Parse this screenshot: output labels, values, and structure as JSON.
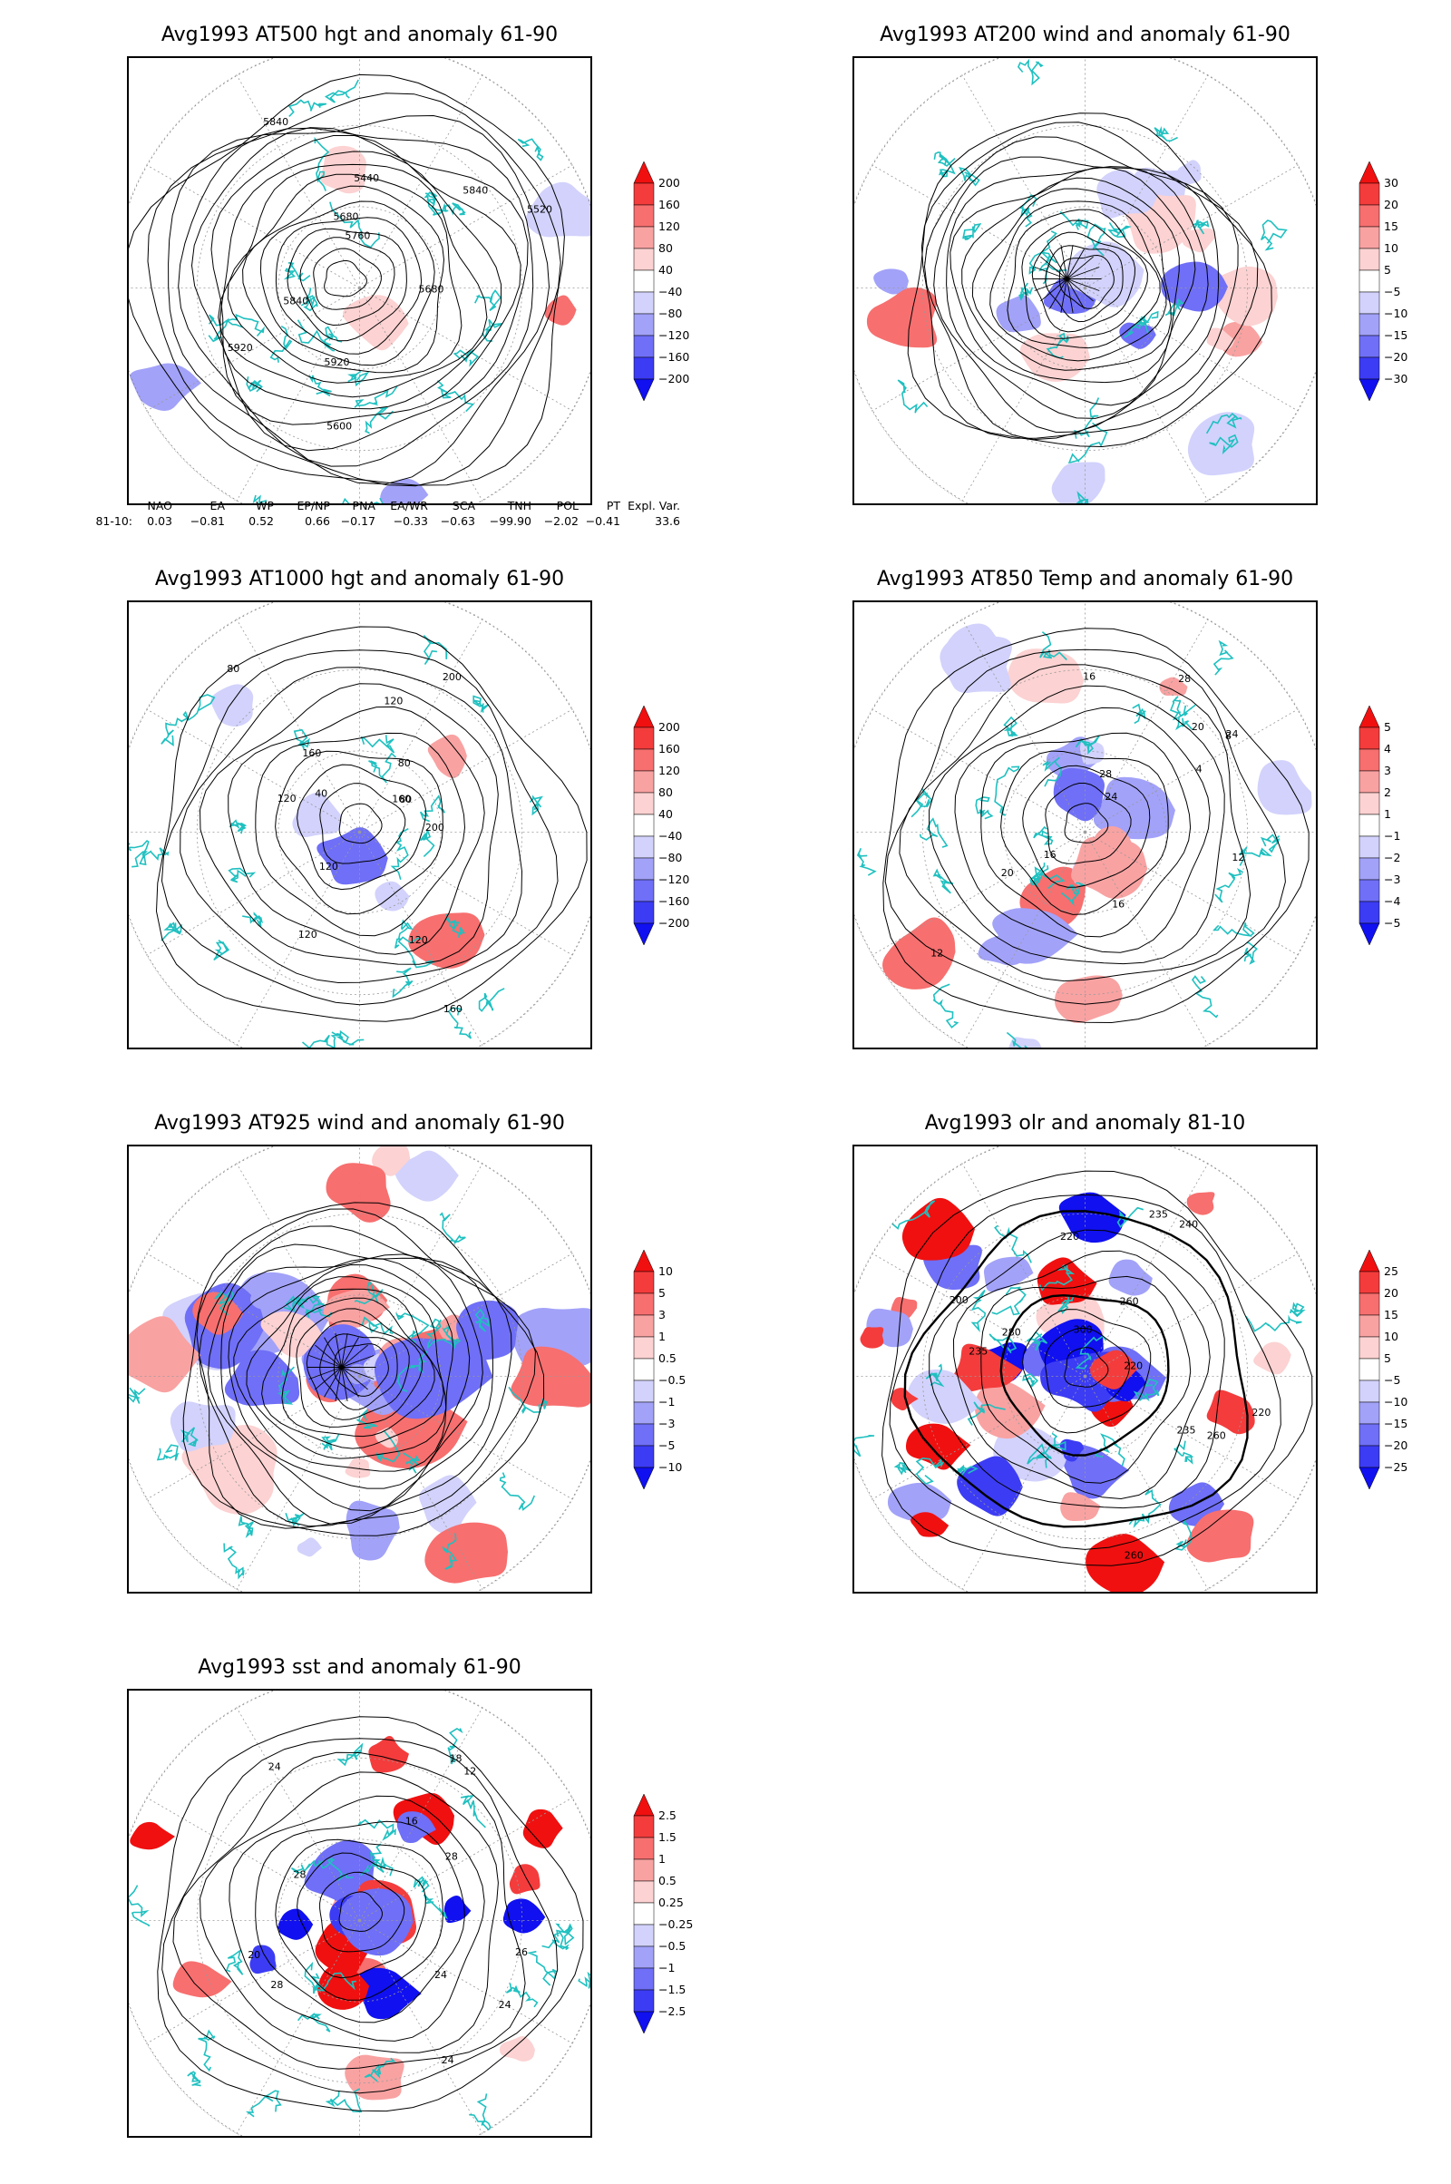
{
  "panels": [
    {
      "title": "Avg1993 AT500 hgt and anomaly 61-90",
      "legend": [
        "200",
        "160",
        "120",
        "80",
        "40",
        "−40",
        "−80",
        "−120",
        "−160",
        "−200"
      ],
      "contour_labels": [
        "5840",
        "5760",
        "5680",
        "5600",
        "5520",
        "5440",
        "5920",
        "5680",
        "5840",
        "5840",
        "5920"
      ]
    },
    {
      "title": "Avg1993 AT200 wind and anomaly 61-90",
      "legend": [
        "30",
        "20",
        "15",
        "10",
        "5",
        "−5",
        "−10",
        "−15",
        "−20",
        "−30"
      ],
      "contour_labels": []
    },
    {
      "title": "Avg1993 AT1000 hgt and anomaly 61-90",
      "legend": [
        "200",
        "160",
        "120",
        "80",
        "40",
        "−40",
        "−80",
        "−120",
        "−160",
        "−200"
      ],
      "contour_labels": [
        "120",
        "160",
        "80",
        "200",
        "160",
        "120",
        "80",
        "40",
        "120",
        "200",
        "160",
        "120",
        "80",
        "120"
      ]
    },
    {
      "title": "Avg1993 AT850 Temp and anomaly 61-90",
      "legend": [
        "5",
        "4",
        "3",
        "2",
        "1",
        "−1",
        "−2",
        "−3",
        "−4",
        "−5"
      ],
      "contour_labels": [
        "16",
        "12",
        "8",
        "24",
        "20",
        "28",
        "16",
        "4",
        "12",
        "20",
        "28",
        "24",
        "16"
      ]
    },
    {
      "title": "Avg1993 AT925 wind and anomaly 61-90",
      "legend": [
        "10",
        "5",
        "3",
        "1",
        "0.5",
        "−0.5",
        "−1",
        "−3",
        "−5",
        "−10"
      ],
      "contour_labels": []
    },
    {
      "title": "Avg1993 olr and anomaly 81-10",
      "legend": [
        "25",
        "20",
        "15",
        "10",
        "5",
        "−5",
        "−10",
        "−15",
        "−20",
        "−25"
      ],
      "contour_labels": [
        "260",
        "235",
        "220",
        "200",
        "240",
        "260",
        "220",
        "235",
        "300",
        "280",
        "260",
        "235",
        "220"
      ]
    },
    {
      "title": "Avg1993 sst and anomaly 61-90",
      "legend": [
        "2.5",
        "1.5",
        "1",
        "0.5",
        "0.25",
        "−0.25",
        "−0.5",
        "−1",
        "−1.5",
        "−2.5"
      ],
      "contour_labels": [
        "28",
        "26",
        "24",
        "20",
        "16",
        "12",
        "24",
        "18",
        "28",
        "24",
        "28",
        "24"
      ]
    }
  ],
  "teleconnection": {
    "headers": [
      "NAO",
      "EA",
      "WP",
      "EP/NP",
      "PNA",
      "EA/WR",
      "SCA",
      "TNH",
      "POL",
      "PT",
      "Expl. Var."
    ],
    "row_label": "81-10:",
    "values": [
      "0.03",
      "−0.81",
      "0.52",
      "0.66",
      "−0.17",
      "−0.33",
      "−0.63",
      "−99.90",
      "−2.02",
      "−0.41",
      "33.6"
    ]
  },
  "colors": {
    "coast": "#20c0c0",
    "contour": "#000000",
    "red_scale": [
      "#f01010",
      "#f43c3c",
      "#f76f6f",
      "#f9a2a2",
      "#fcd2d2"
    ],
    "blue_scale": [
      "#d2d2fc",
      "#a2a2f9",
      "#6f6ff7",
      "#3c3cf4",
      "#1010f0"
    ]
  }
}
